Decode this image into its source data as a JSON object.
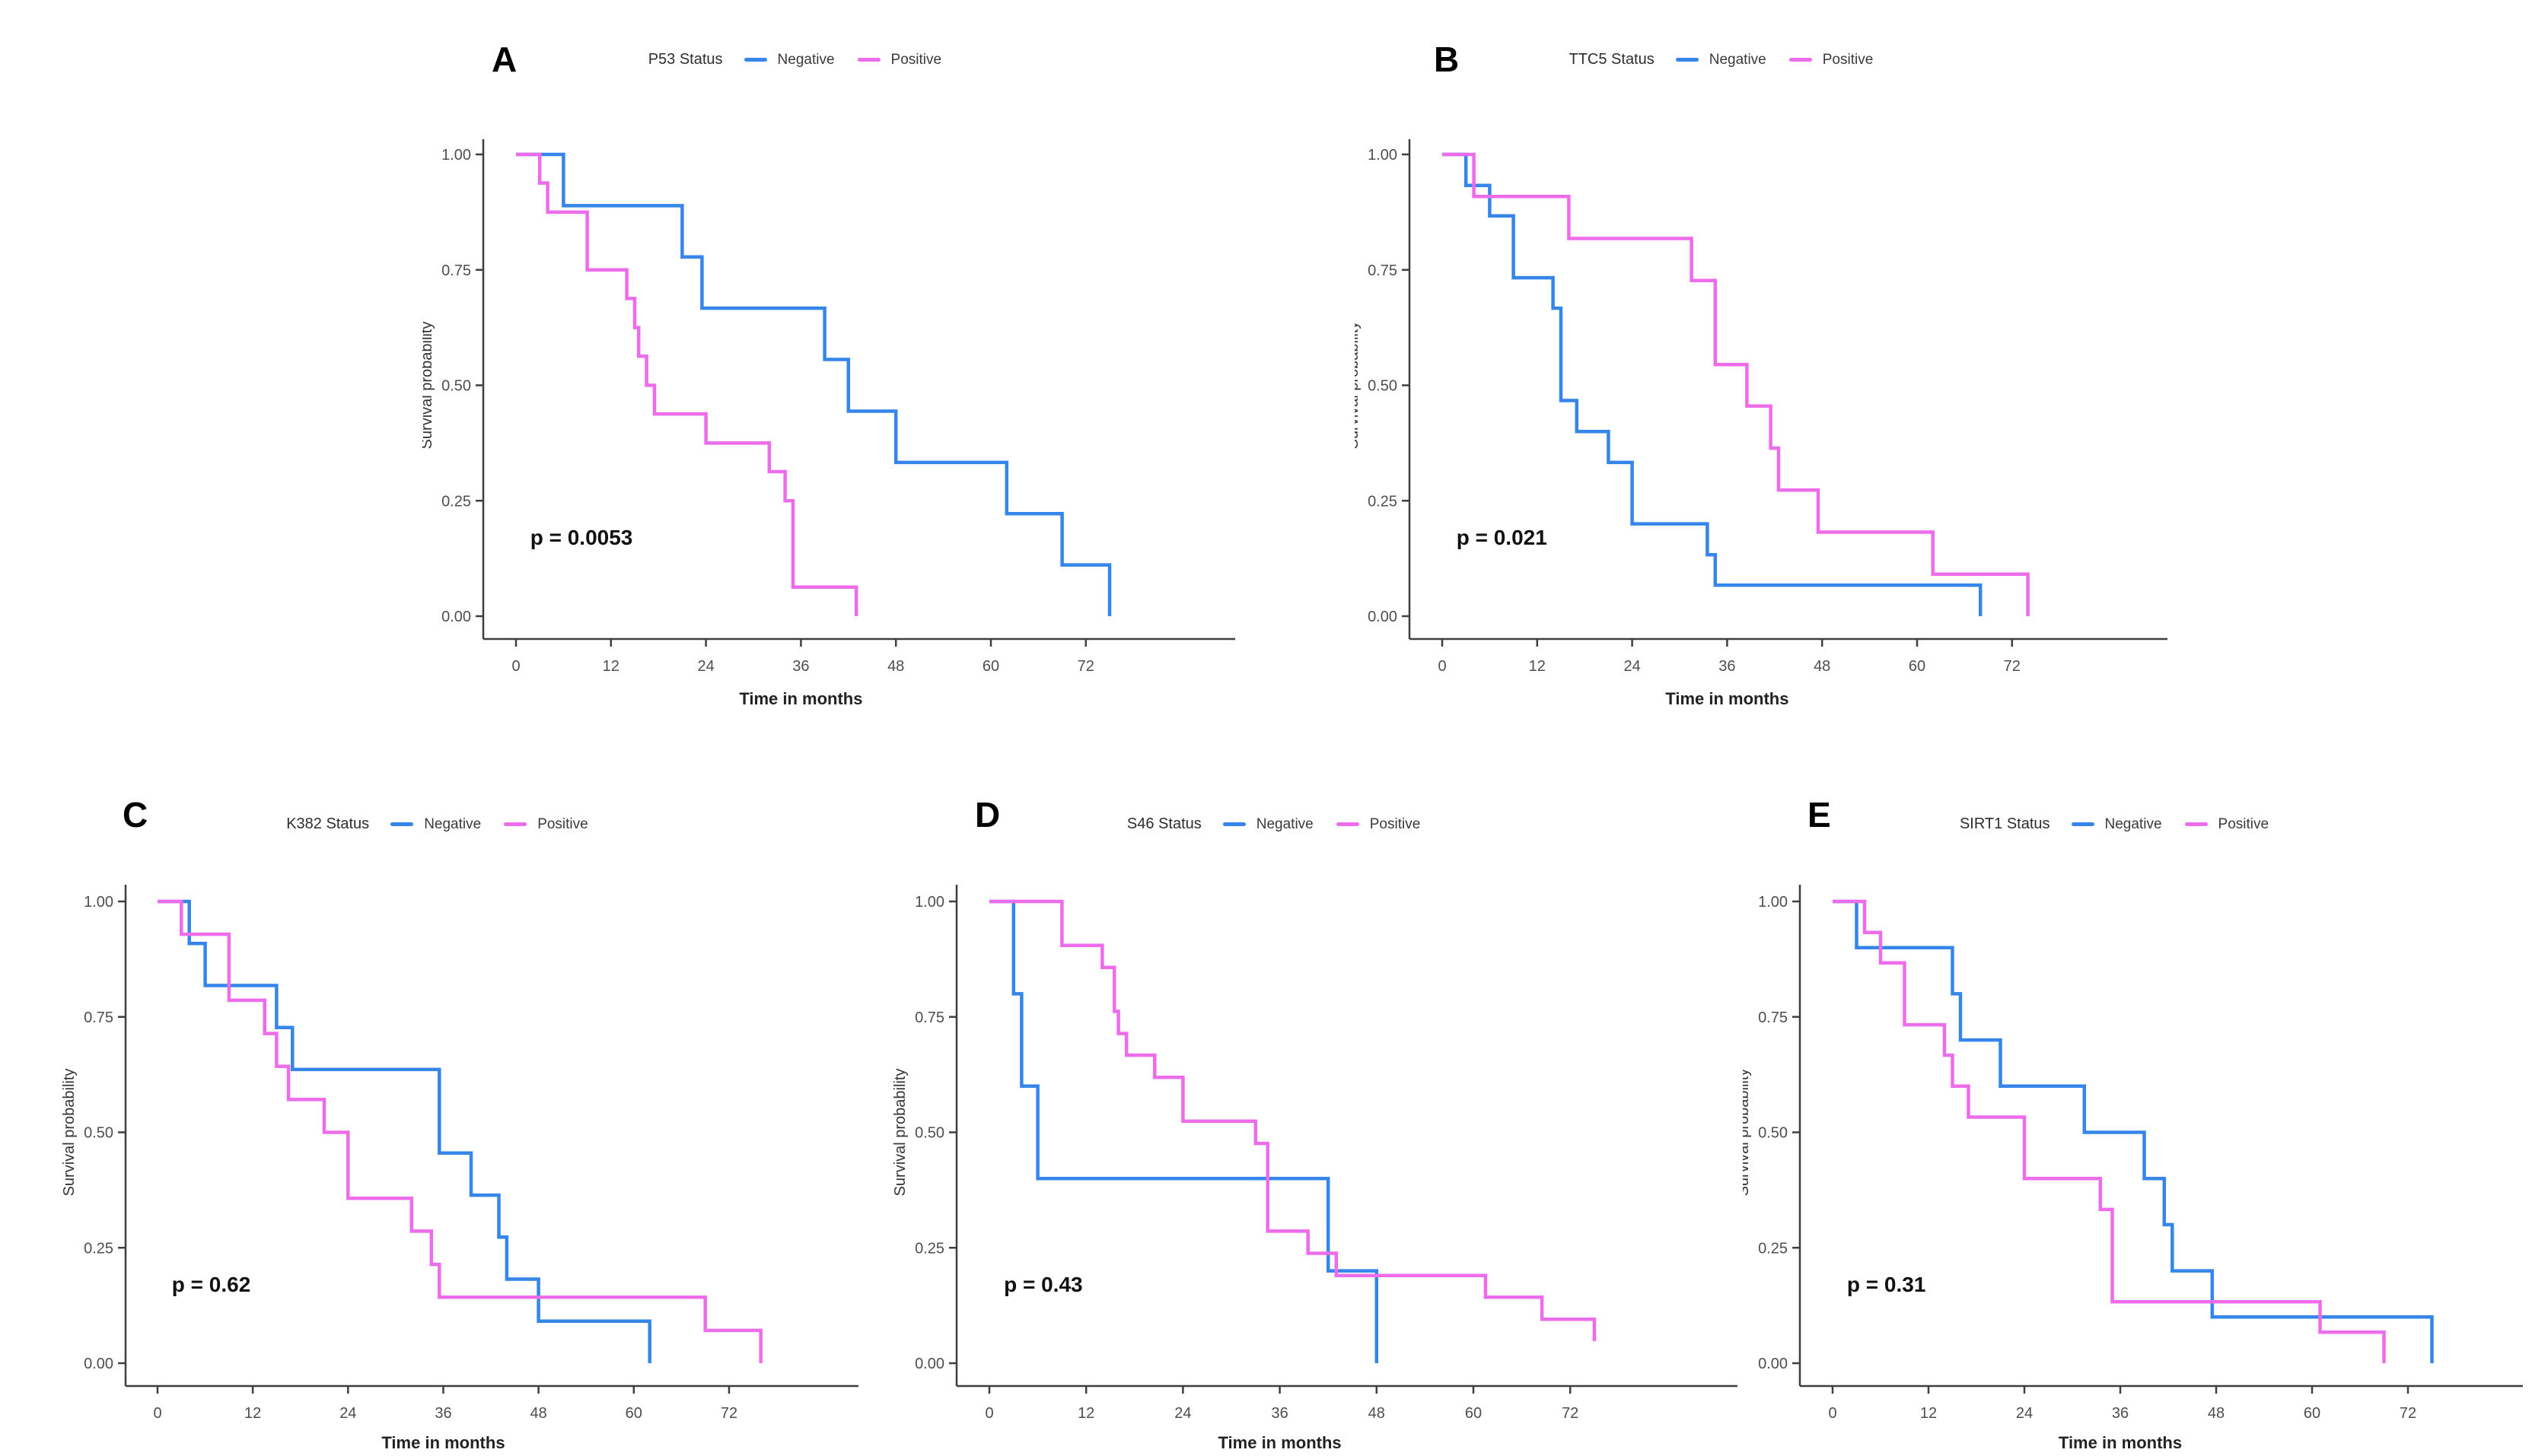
{
  "figure": {
    "x_axis_label": "Time in months",
    "y_axis_label": "Survival probability",
    "legend": {
      "negative_label": "Negative",
      "positive_label": "Positive"
    },
    "colors": {
      "negative": "#3585EA",
      "positive": "#ED6CEC",
      "axis": "#3f3f3f",
      "tick_text": "#4e4e4e",
      "title_text": "#2d2d2d",
      "p_text": "#111111"
    }
  },
  "chart_data": [
    {
      "type": "line",
      "kind": "kaplan-meier-step",
      "panel_letter": "A",
      "title": "P53 Status",
      "p_label": "p = 0.0053",
      "xlabel": "Time in months",
      "ylabel": "Survival probability",
      "x_ticks": [
        0,
        12,
        24,
        36,
        48,
        60,
        72
      ],
      "y_ticks": [
        0.0,
        0.25,
        0.5,
        0.75,
        1.0
      ],
      "xlim": [
        0,
        80
      ],
      "ylim": [
        0,
        1
      ],
      "legend_position": "top",
      "grid": false,
      "series": [
        {
          "name": "Negative",
          "color_key": "negative",
          "points": [
            [
              0,
              1.0
            ],
            [
              6,
              0.889
            ],
            [
              21,
              0.778
            ],
            [
              23.5,
              0.667
            ],
            [
              39,
              0.556
            ],
            [
              42,
              0.444
            ],
            [
              48,
              0.333
            ],
            [
              62,
              0.222
            ],
            [
              69,
              0.111
            ],
            [
              75,
              0
            ]
          ]
        },
        {
          "name": "Positive",
          "color_key": "positive",
          "points": [
            [
              0,
              1.0
            ],
            [
              3,
              0.938
            ],
            [
              4,
              0.875
            ],
            [
              9,
              0.75
            ],
            [
              14,
              0.688
            ],
            [
              15,
              0.625
            ],
            [
              15.5,
              0.563
            ],
            [
              16.5,
              0.5
            ],
            [
              17.5,
              0.438
            ],
            [
              24,
              0.375
            ],
            [
              32,
              0.313
            ],
            [
              34,
              0.25
            ],
            [
              35,
              0.063
            ],
            [
              43,
              0
            ]
          ]
        }
      ]
    },
    {
      "type": "line",
      "kind": "kaplan-meier-step",
      "panel_letter": "B",
      "title": "TTC5 Status",
      "p_label": "p = 0.021",
      "xlabel": "Time in months",
      "ylabel": "Survival probability",
      "x_ticks": [
        0,
        12,
        24,
        36,
        48,
        60,
        72
      ],
      "y_ticks": [
        0.0,
        0.25,
        0.5,
        0.75,
        1.0
      ],
      "xlim": [
        0,
        80
      ],
      "ylim": [
        0,
        1
      ],
      "legend_position": "top",
      "grid": false,
      "series": [
        {
          "name": "Negative",
          "color_key": "negative",
          "points": [
            [
              0,
              1.0
            ],
            [
              3,
              0.933
            ],
            [
              6,
              0.867
            ],
            [
              9,
              0.733
            ],
            [
              14,
              0.667
            ],
            [
              15,
              0.467
            ],
            [
              17,
              0.4
            ],
            [
              21,
              0.333
            ],
            [
              24,
              0.2
            ],
            [
              33.5,
              0.133
            ],
            [
              34.5,
              0.067
            ],
            [
              68,
              0
            ]
          ]
        },
        {
          "name": "Positive",
          "color_key": "positive",
          "points": [
            [
              0,
              1.0
            ],
            [
              4,
              0.909
            ],
            [
              16,
              0.818
            ],
            [
              31.5,
              0.727
            ],
            [
              34.5,
              0.545
            ],
            [
              38.5,
              0.455
            ],
            [
              41.5,
              0.364
            ],
            [
              42.5,
              0.273
            ],
            [
              47.5,
              0.182
            ],
            [
              62,
              0.091
            ],
            [
              74,
              0
            ]
          ]
        }
      ]
    },
    {
      "type": "line",
      "kind": "kaplan-meier-step",
      "panel_letter": "C",
      "title": "K382 Status",
      "p_label": "p = 0.62",
      "xlabel": "Time in months",
      "ylabel": "Survival probability",
      "x_ticks": [
        0,
        12,
        24,
        36,
        48,
        60,
        72
      ],
      "y_ticks": [
        0.0,
        0.25,
        0.5,
        0.75,
        1.0
      ],
      "xlim": [
        0,
        80
      ],
      "ylim": [
        0,
        1
      ],
      "legend_position": "top",
      "grid": false,
      "series": [
        {
          "name": "Negative",
          "color_key": "negative",
          "points": [
            [
              0,
              1.0
            ],
            [
              4,
              0.909
            ],
            [
              6,
              0.818
            ],
            [
              15,
              0.727
            ],
            [
              17,
              0.636
            ],
            [
              35.5,
              0.455
            ],
            [
              39.5,
              0.364
            ],
            [
              43,
              0.273
            ],
            [
              44,
              0.182
            ],
            [
              48,
              0.091
            ],
            [
              62,
              0
            ]
          ]
        },
        {
          "name": "Positive",
          "color_key": "positive",
          "points": [
            [
              0,
              1.0
            ],
            [
              3,
              0.929
            ],
            [
              9,
              0.786
            ],
            [
              13.5,
              0.714
            ],
            [
              15,
              0.643
            ],
            [
              16.5,
              0.571
            ],
            [
              21,
              0.5
            ],
            [
              24,
              0.357
            ],
            [
              32,
              0.286
            ],
            [
              34.5,
              0.214
            ],
            [
              35.5,
              0.143
            ],
            [
              69,
              0.071
            ],
            [
              76,
              0
            ]
          ]
        }
      ]
    },
    {
      "type": "line",
      "kind": "kaplan-meier-step",
      "panel_letter": "D",
      "title": "S46 Status",
      "p_label": "p = 0.43",
      "xlabel": "Time in months",
      "ylabel": "Survival probability",
      "x_ticks": [
        0,
        12,
        24,
        36,
        48,
        60,
        72
      ],
      "y_ticks": [
        0.0,
        0.25,
        0.5,
        0.75,
        1.0
      ],
      "xlim": [
        0,
        80
      ],
      "ylim": [
        0,
        1
      ],
      "legend_position": "top",
      "grid": false,
      "series": [
        {
          "name": "Negative",
          "color_key": "negative",
          "points": [
            [
              0,
              1.0
            ],
            [
              3,
              0.8
            ],
            [
              4,
              0.6
            ],
            [
              6,
              0.4
            ],
            [
              42,
              0.2
            ],
            [
              48,
              0
            ]
          ]
        },
        {
          "name": "Positive",
          "color_key": "positive",
          "points": [
            [
              0,
              1.0
            ],
            [
              9,
              0.905
            ],
            [
              14,
              0.857
            ],
            [
              15.5,
              0.762
            ],
            [
              16,
              0.714
            ],
            [
              17,
              0.667
            ],
            [
              20.5,
              0.619
            ],
            [
              24,
              0.524
            ],
            [
              33,
              0.476
            ],
            [
              34.5,
              0.286
            ],
            [
              39.5,
              0.238
            ],
            [
              43,
              0.19
            ],
            [
              61.5,
              0.143
            ],
            [
              68.5,
              0.095
            ],
            [
              75,
              0.048
            ]
          ]
        }
      ]
    },
    {
      "type": "line",
      "kind": "kaplan-meier-step",
      "panel_letter": "E",
      "title": "SIRT1 Status",
      "p_label": "p = 0.31",
      "xlabel": "Time in months",
      "ylabel": "Survival probability",
      "x_ticks": [
        0,
        12,
        24,
        36,
        48,
        60,
        72
      ],
      "y_ticks": [
        0.0,
        0.25,
        0.5,
        0.75,
        1.0
      ],
      "xlim": [
        0,
        80
      ],
      "ylim": [
        0,
        1
      ],
      "legend_position": "top",
      "grid": false,
      "series": [
        {
          "name": "Negative",
          "color_key": "negative",
          "points": [
            [
              0,
              1.0
            ],
            [
              3,
              0.9
            ],
            [
              15,
              0.8
            ],
            [
              16,
              0.7
            ],
            [
              21,
              0.6
            ],
            [
              31.5,
              0.5
            ],
            [
              39,
              0.4
            ],
            [
              41.5,
              0.3
            ],
            [
              42.5,
              0.2
            ],
            [
              47.5,
              0.1
            ],
            [
              75,
              0
            ]
          ]
        },
        {
          "name": "Positive",
          "color_key": "positive",
          "points": [
            [
              0,
              1.0
            ],
            [
              4,
              0.933
            ],
            [
              6,
              0.867
            ],
            [
              9,
              0.733
            ],
            [
              14,
              0.667
            ],
            [
              15,
              0.6
            ],
            [
              17,
              0.533
            ],
            [
              24,
              0.4
            ],
            [
              33.5,
              0.333
            ],
            [
              35,
              0.133
            ],
            [
              61,
              0.067
            ],
            [
              69,
              0
            ]
          ]
        }
      ]
    }
  ]
}
